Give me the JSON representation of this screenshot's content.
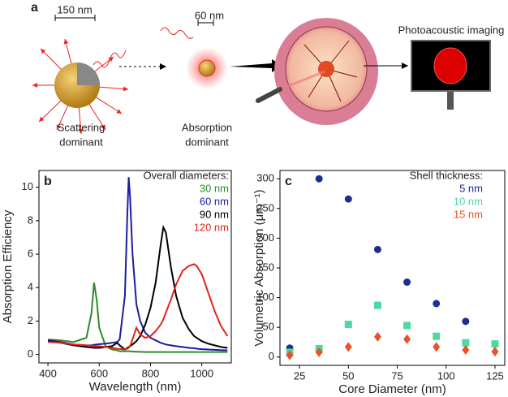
{
  "panel_a": {
    "label": "a",
    "scale_bar_large": "150 nm",
    "scale_bar_small": "60 nm",
    "imaging_title": "Photoacoustic imaging",
    "caption_left": [
      "Scattering",
      "dominant"
    ],
    "caption_right": [
      "Absorption",
      "dominant"
    ]
  },
  "chart_data": [
    {
      "type": "line",
      "panel_label": "b",
      "x_label": "Wavelength (nm)",
      "y_label": "Absorption Efficiency",
      "legend_title": "Overall diameters:",
      "legend": "upper right",
      "x": [
        400,
        450,
        500,
        550,
        570,
        580,
        590,
        600,
        625,
        650,
        670,
        680,
        700,
        710,
        715,
        720,
        730,
        745,
        760,
        780,
        800,
        820,
        840,
        850,
        860,
        880,
        900,
        925,
        950,
        970,
        980,
        1000,
        1025,
        1050,
        1075,
        1100
      ],
      "series": [
        {
          "name": "30 nm",
          "color": "#2e8b2e",
          "values": [
            0.9,
            0.85,
            0.75,
            1.0,
            2.5,
            4.3,
            3.3,
            1.6,
            0.5,
            0.3,
            0.25,
            0.2,
            0.2,
            0.2,
            0.2,
            0.2,
            0.18,
            0.17,
            0.16,
            0.15,
            0.15,
            0.15,
            0.15,
            0.15,
            0.15,
            0.15,
            0.15,
            0.15,
            0.15,
            0.15,
            0.15,
            0.15,
            0.15,
            0.15,
            0.15,
            0.15
          ]
        },
        {
          "name": "60 nm",
          "color": "#1c1ca0",
          "values": [
            0.85,
            0.75,
            0.6,
            0.55,
            0.55,
            0.58,
            0.6,
            0.62,
            0.65,
            0.7,
            0.75,
            0.9,
            3.5,
            8.5,
            10.6,
            9.5,
            6,
            3,
            2,
            1.3,
            1,
            0.85,
            0.7,
            0.65,
            0.6,
            0.55,
            0.5,
            0.45,
            0.4,
            0.38,
            0.35,
            0.32,
            0.3,
            0.28,
            0.26,
            0.25
          ]
        },
        {
          "name": "90 nm",
          "color": "#000000",
          "values": [
            0.8,
            0.7,
            0.55,
            0.45,
            0.42,
            0.4,
            0.4,
            0.4,
            0.45,
            0.5,
            0.7,
            0.55,
            0.3,
            0.4,
            0.45,
            0.5,
            0.6,
            0.8,
            1.1,
            1.8,
            2.8,
            4.3,
            6.6,
            7.6,
            7.3,
            5.2,
            3.5,
            2.2,
            1.5,
            1.1,
            1,
            0.8,
            0.65,
            0.55,
            0.45,
            0.4
          ]
        },
        {
          "name": "120 nm",
          "color": "#e2231a",
          "values": [
            0.75,
            0.7,
            0.6,
            0.55,
            0.52,
            0.5,
            0.5,
            0.5,
            0.45,
            0.4,
            0.35,
            0.33,
            0.3,
            0.35,
            0.4,
            0.5,
            0.9,
            1.6,
            1.2,
            1.0,
            1.1,
            1.4,
            1.8,
            2.1,
            2.5,
            3.3,
            4.2,
            5,
            5.3,
            5.4,
            5.3,
            4.8,
            3.7,
            2.6,
            1.7,
            1.1
          ]
        }
      ],
      "xlim": [
        365,
        1115
      ],
      "xticks": [
        400,
        600,
        800,
        1000
      ],
      "ylim": [
        -0.5,
        11
      ],
      "yticks": [
        0,
        2,
        4,
        6,
        8,
        10
      ]
    },
    {
      "type": "scatter",
      "panel_label": "c",
      "x_label": "Core Diameter (nm)",
      "y_label": "Volumetric Absorption  (μm⁻¹)",
      "legend_title": "Shell thickness:",
      "legend": "upper right",
      "series": [
        {
          "name": "5 nm",
          "color": "#1f2f8f",
          "marker": "circle",
          "x": [
            20,
            35,
            50,
            65,
            80,
            95,
            110
          ],
          "values": [
            15,
            300,
            266,
            181,
            126,
            90,
            60
          ]
        },
        {
          "name": "10 nm",
          "color": "#4dd9a0",
          "marker": "square",
          "x": [
            20,
            35,
            50,
            65,
            80,
            95,
            110,
            125
          ],
          "values": [
            8,
            14,
            55,
            87,
            53,
            35,
            24,
            22
          ]
        },
        {
          "name": "15 nm",
          "color": "#e8512a",
          "marker": "diamond",
          "x": [
            20,
            35,
            50,
            65,
            80,
            95,
            110,
            125
          ],
          "values": [
            3,
            8,
            17,
            34,
            30,
            17,
            12,
            9
          ]
        }
      ],
      "xlim": [
        15,
        130
      ],
      "xticks": [
        25,
        50,
        75,
        100,
        125
      ],
      "ylim": [
        -14,
        314
      ],
      "yticks": [
        0,
        50,
        100,
        150,
        200,
        250,
        300
      ]
    }
  ]
}
